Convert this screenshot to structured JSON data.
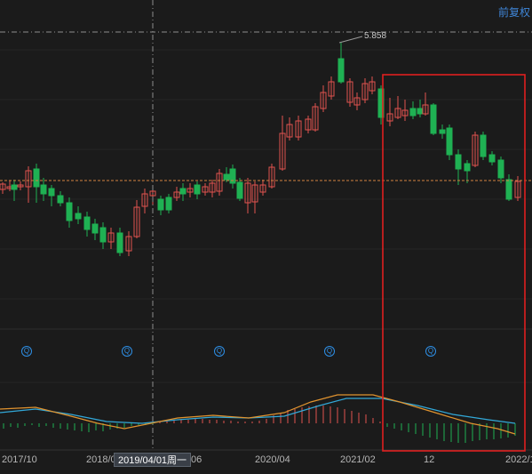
{
  "header": {
    "adjust_label": "前复权"
  },
  "crosshair": {
    "date_label": "2019/04/01周一"
  },
  "annotations": {
    "peak_value": "5.858"
  },
  "x_axis": {
    "ticks": [
      "2017/10",
      "2018/0",
      "/06",
      "2020/04",
      "2021/02",
      "12",
      "2022/1"
    ]
  },
  "event_markers": {
    "symbol": "Q",
    "count": 5
  },
  "colors": {
    "background": "#1b1b1b",
    "up": "#e0534f",
    "down": "#1fb153",
    "selection_box": "#e02020",
    "macd_dif": "#32a8d8",
    "macd_dea": "#e0932f",
    "crosshair": "#8e8e8e",
    "reference_line": "#d08040"
  }
}
